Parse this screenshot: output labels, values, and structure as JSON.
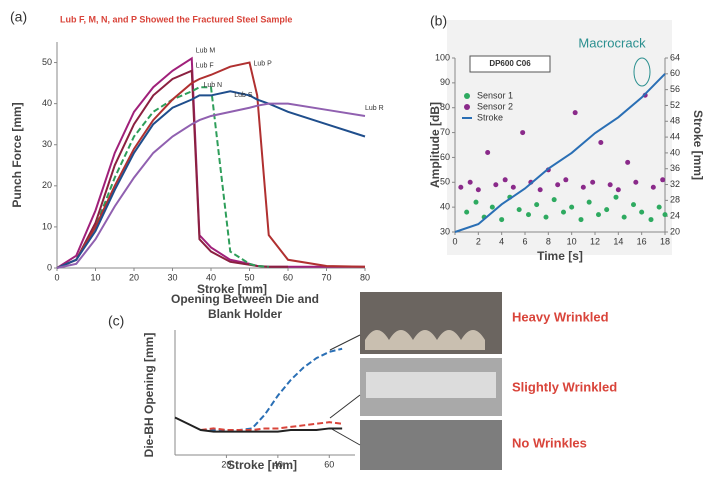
{
  "chart_data": [
    {
      "type": "line",
      "panel_label": "(a)",
      "title": "Lub F, M, N, and P Showed the Fractured Steel Sample",
      "x_label": "Stroke [mm]",
      "y_label": "Punch Force [mm]",
      "x": [
        0,
        5,
        10,
        15,
        20,
        25,
        30,
        35,
        37,
        40,
        45,
        50,
        52,
        55,
        60,
        70,
        80
      ],
      "xlim": [
        0,
        80
      ],
      "xticks": [
        0,
        10,
        20,
        30,
        40,
        50,
        60,
        70,
        80
      ],
      "ylim": [
        0,
        55
      ],
      "yticks": [
        0,
        10,
        20,
        30,
        40,
        50
      ],
      "grid": false,
      "series": [
        {
          "name": "Lub M",
          "color": "#a0207a",
          "dash": false,
          "values": [
            0,
            3,
            14,
            28,
            38,
            44,
            48,
            51,
            8,
            5,
            2,
            1,
            0.5,
            0.3,
            0.3,
            0.3,
            0.3
          ]
        },
        {
          "name": "Lub F",
          "color": "#8b2040",
          "dash": false,
          "values": [
            0,
            2,
            11,
            25,
            35,
            42,
            46,
            48,
            7,
            4,
            1.5,
            0.8,
            0.5,
            0.3,
            0.3,
            null,
            null
          ]
        },
        {
          "name": "Lub N",
          "color": "#2e9e5a",
          "dash": true,
          "values": [
            0,
            2,
            10,
            22,
            32,
            38,
            41,
            43,
            44,
            44,
            4,
            1,
            0.5,
            0.3,
            null,
            null,
            null
          ]
        },
        {
          "name": "Lub P",
          "color": "#b03030",
          "dash": false,
          "values": [
            0,
            2,
            10,
            20,
            29,
            36,
            41,
            45,
            46,
            47,
            49,
            50,
            42,
            8,
            2,
            0.5,
            0.3
          ]
        },
        {
          "name": "Lub S",
          "color": "#1f4e8c",
          "dash": false,
          "values": [
            0,
            2,
            9,
            19,
            28,
            35,
            39,
            41,
            42,
            42,
            43,
            42,
            41,
            40,
            38,
            35,
            32
          ]
        },
        {
          "name": "Lub R",
          "color": "#9060b0",
          "dash": false,
          "values": [
            0,
            1,
            7,
            15,
            22,
            28,
            32,
            35,
            36,
            37,
            38,
            39,
            39.5,
            40,
            40,
            38.5,
            37
          ]
        }
      ]
    },
    {
      "type": "scatter",
      "panel_label": "(b)",
      "title": "DP600 C06",
      "annotation": "Macrocrack",
      "x_label": "Time [s]",
      "y_label": "Amplitude [dB]",
      "y2_label": "Stroke [mm]",
      "xlim": [
        0,
        18
      ],
      "xticks": [
        0,
        2,
        4,
        6,
        8,
        10,
        12,
        14,
        16,
        18
      ],
      "ylim": [
        30,
        100
      ],
      "yticks": [
        30,
        40,
        50,
        60,
        70,
        80,
        90,
        100
      ],
      "y2lim": [
        20,
        64
      ],
      "y2ticks": [
        20,
        24,
        28,
        32,
        36,
        40,
        44,
        48,
        52,
        56,
        60,
        64
      ],
      "series": [
        {
          "name": "Sensor 1",
          "color": "#2eaa60",
          "x": [
            1,
            1.8,
            2.5,
            3.2,
            4,
            4.7,
            5.5,
            6.3,
            7,
            7.8,
            8.5,
            9.3,
            10,
            10.8,
            11.5,
            12.3,
            13,
            13.8,
            14.5,
            15.3,
            16,
            16.8,
            17.5,
            18
          ],
          "values": [
            38,
            42,
            36,
            40,
            35,
            44,
            39,
            37,
            41,
            36,
            43,
            38,
            40,
            35,
            42,
            37,
            39,
            44,
            36,
            41,
            38,
            35,
            40,
            37
          ]
        },
        {
          "name": "Sensor 2",
          "color": "#8a2a8a",
          "x": [
            0.5,
            1.3,
            2,
            2.8,
            3.5,
            4.3,
            5,
            5.8,
            6.5,
            7.3,
            8,
            8.8,
            9.5,
            10.3,
            11,
            11.8,
            12.5,
            13.3,
            14,
            14.8,
            15.5,
            16.3,
            17,
            17.8
          ],
          "values": [
            48,
            50,
            47,
            62,
            49,
            51,
            48,
            70,
            50,
            47,
            55,
            49,
            51,
            78,
            48,
            50,
            66,
            49,
            47,
            58,
            50,
            85,
            48,
            51
          ]
        },
        {
          "name": "Stroke",
          "color": "#2a6fb5",
          "axis": "y2",
          "x": [
            0,
            2,
            4,
            6,
            8,
            10,
            12,
            14,
            16,
            18
          ],
          "values": [
            20,
            22,
            27,
            31,
            36,
            40,
            45,
            49,
            54,
            60
          ]
        }
      ]
    },
    {
      "type": "line",
      "panel_label": "(c)",
      "title": "Opening Between Die and Blank Holder",
      "x_label": "Stroke [mm]",
      "y_label": "Die-BH Opening [mm]",
      "x": [
        0,
        5,
        10,
        15,
        20,
        25,
        30,
        35,
        40,
        45,
        50,
        55,
        60,
        65
      ],
      "xlim": [
        0,
        70
      ],
      "xticks": [
        20,
        40,
        60
      ],
      "ylim": [
        0,
        4
      ],
      "series": [
        {
          "name": "Heavy Wrinkled",
          "color": "#2a6fb5",
          "dash": true,
          "values": [
            null,
            null,
            0.8,
            0.8,
            0.8,
            0.8,
            0.85,
            1.3,
            1.9,
            2.4,
            2.8,
            3.1,
            3.3,
            3.4
          ]
        },
        {
          "name": "Slightly Wrinkled",
          "color": "#d9443a",
          "dash": true,
          "values": [
            null,
            null,
            0.8,
            0.85,
            0.8,
            0.8,
            0.8,
            0.85,
            0.85,
            0.9,
            0.95,
            1.0,
            1.05,
            1.0
          ]
        },
        {
          "name": "No Wrinkles",
          "color": "#222222",
          "dash": false,
          "values": [
            1.2,
            1.0,
            0.8,
            0.75,
            0.75,
            0.75,
            0.75,
            0.75,
            0.75,
            0.8,
            0.8,
            0.8,
            0.85,
            0.85
          ]
        }
      ]
    }
  ]
}
